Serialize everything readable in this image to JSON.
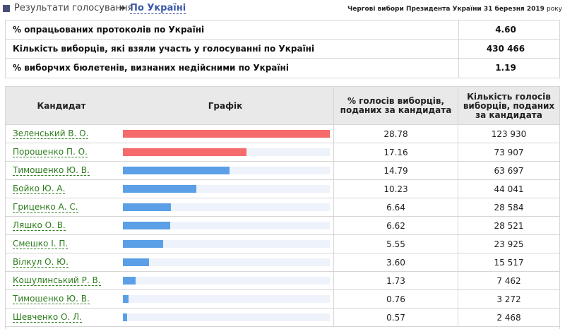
{
  "header": {
    "breadcrumb": "Результати голосування",
    "separator": "»",
    "region_link": "По Україні",
    "election_title": "Чергові вибори Президента України 31 березня 2019",
    "election_year_suffix": "року"
  },
  "summary": [
    {
      "label": "% опрацьованих протоколів по Україні",
      "value": "4.60"
    },
    {
      "label": "Кількість виборців, які взяли участь у голосуванні по Україні",
      "value": "430 466"
    },
    {
      "label": "% виборчих бюлетенів, визнаних недійсними по Україні",
      "value": "1.19"
    }
  ],
  "table": {
    "headers": {
      "candidate": "Кандидат",
      "graph": "Графік",
      "percent": "% голосів виборців, поданих за кандидата",
      "count": "Кількість голосів виборців, поданих за кандидата"
    },
    "colors": {
      "top_two": "#f56a6a",
      "others": "#5ba0e6",
      "track": "#eef2fa"
    },
    "rows": [
      {
        "name": "Зеленський В. О.",
        "percent": "28.78",
        "count": "123 930",
        "share": 28.78,
        "highlight": true
      },
      {
        "name": "Порошенко П. О.",
        "percent": "17.16",
        "count": "73 907",
        "share": 17.16,
        "highlight": true
      },
      {
        "name": "Тимошенко Ю. В.",
        "percent": "14.79",
        "count": "63 697",
        "share": 14.79,
        "highlight": false
      },
      {
        "name": "Бойко Ю. А.",
        "percent": "10.23",
        "count": "44 041",
        "share": 10.23,
        "highlight": false
      },
      {
        "name": "Гриценко А. С.",
        "percent": "6.64",
        "count": "28 584",
        "share": 6.64,
        "highlight": false
      },
      {
        "name": "Ляшко О. В.",
        "percent": "6.62",
        "count": "28 521",
        "share": 6.62,
        "highlight": false
      },
      {
        "name": "Смешко І. П.",
        "percent": "5.55",
        "count": "23 925",
        "share": 5.55,
        "highlight": false
      },
      {
        "name": "Вілкул О. Ю.",
        "percent": "3.60",
        "count": "15 517",
        "share": 3.6,
        "highlight": false
      },
      {
        "name": "Кошулинський Р. В.",
        "percent": "1.73",
        "count": "7 462",
        "share": 1.73,
        "highlight": false
      },
      {
        "name": "Тимошенко Ю. В.",
        "percent": "0.76",
        "count": "3 272",
        "share": 0.76,
        "highlight": false
      },
      {
        "name": "Шевченко О. Л.",
        "percent": "0.57",
        "count": "2 468",
        "share": 0.57,
        "highlight": false
      }
    ]
  }
}
